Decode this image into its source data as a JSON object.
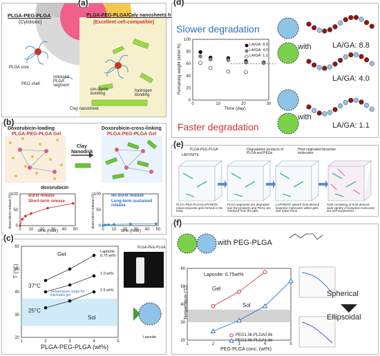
{
  "panel_a": {
    "label": "(a)",
    "left_title": "PLGA-PEG-PLGA",
    "left_sub": "(Cytotoxic)",
    "right_title": "PLGA-PEG-PLGA/Caly nanosheets hybrid",
    "right_sub": "(Excellent cell-compatible)",
    "plga_core": "PLGA core",
    "released_segment": "released PLGA segment",
    "peg_shell": "PEG shell",
    "ion_dipole": "ion-dipole bonding",
    "hydrogen": "hydrogen bonding",
    "clay": "Clay nanosheet"
  },
  "panel_b": {
    "label": "(b)",
    "left_title_1": "Doxorubicin-loading",
    "left_title_2": "PLGA-PEG-PLGA Gel",
    "right_title_1": "Doxorubicin-cross-linking",
    "right_title_2": "PLGA-PEG-PLGA Gel",
    "arrow_label_1": "Clay",
    "arrow_label_2": "Nanodisk",
    "drug": "doxorubicin",
    "left_check_1": "Burst release",
    "left_check_2": "Short-term release",
    "right_check_1": "No burst release",
    "right_check_2": "Long-term sustained release",
    "ylabel": "doxorubicin release (%)",
    "xlabel": "time (hour)",
    "ticks_y": [
      "0",
      "50",
      "100"
    ],
    "ticks_x": [
      "0",
      "10",
      "20",
      "30",
      "40",
      "50"
    ]
  },
  "panel_c": {
    "label": "(c)",
    "ylabel": "T (°C)",
    "xlabel": "PLGA-PEG-PLGA (wt%)",
    "gel": "Gel",
    "sol": "Sol",
    "t37": "37°C",
    "t25": "25°C",
    "range": "Temperature range for injectable gel",
    "ann_1": "Laponite 0.75 wt%",
    "ann_2": "1.0 wt%",
    "ann_3": "1.5 wt%",
    "inset_label": "PLGA-PEG-PLGA",
    "laponite": "Laponite",
    "x_ticks": [
      "1",
      "2",
      "3",
      "4",
      "5"
    ],
    "y_ticks": [
      "20",
      "30",
      "40",
      "50",
      "60"
    ]
  },
  "panel_d": {
    "label": "(d)",
    "slower": "Slower degradation",
    "faster": "Faster degradation",
    "with_1": "with",
    "with_2": "with",
    "la_88": "LA/GA: 8.8",
    "la_40": "LA/GA: 4.0",
    "la_11": "LA/GA: 1.1",
    "ylabel": "Remaining weight (wt/wt %)",
    "xlabel": "Time (day)",
    "legend": [
      "LA/GA: 8.8",
      "LA/GA: 4.0",
      "LA/GA: 1.1"
    ],
    "x_ticks": [
      "0",
      "10",
      "20",
      "30"
    ],
    "y_ticks": [
      "0",
      "20",
      "40",
      "60",
      "80",
      "100"
    ]
  },
  "panel_e": {
    "label": "(e)",
    "top_1": "PLGA-PEG-PLGA",
    "top_2": "LAPONITE",
    "top_3": "Degradation products of PLGA and PEGs",
    "top_4": "Host-originated bioactive molecules",
    "cap_1": "PLGA-PEG-PLGA/LAPONITE nanocomposite gels formed in the body.",
    "cap_2": "PLGA segments are degraded and the products and PEGs are released from the gels.",
    "cap_3": "LAPONITE adsorb host-derived bioactive molecules within gels and retain them.",
    "cap_4": "Gels consisting of host-derived wide variety of bioactive molecules are self-engineered."
  },
  "panel_f": {
    "label": "(f)",
    "with_text": "with PEG-PLGA",
    "laponite": "Laponite: 0.75wt%",
    "gel": "Gel",
    "sol": "Sol",
    "ylabel": "Temperature (°C)",
    "xlabel": "PEG-PLGA conc. (wt%)",
    "legend_1": "PEG1.0k-PLGA0.8k",
    "legend_2": "PEG1.0k-PLGA1.6k",
    "spherical": "Spherical",
    "ellipsoidal": "Ellipsoidal",
    "x_ticks": [
      "1",
      "2",
      "3",
      "4",
      "5"
    ],
    "y_ticks": [
      "20",
      "30",
      "40",
      "50",
      "60"
    ]
  },
  "colors": {
    "blue": "#2e6fc4",
    "red": "#d0342c",
    "bead_red": "#8b1a14",
    "bead_blue": "#8fc3e8",
    "green": "#7bd24a",
    "gel_band": "#a9d8f2"
  },
  "chart_data": [
    {
      "type": "scatter",
      "panel": "d",
      "xlabel": "Time (day)",
      "ylabel": "Remaining weight (wt/wt %)",
      "xlim": [
        0,
        30
      ],
      "ylim": [
        0,
        100
      ],
      "series": [
        {
          "name": "LA/GA: 8.8",
          "x": [
            3,
            7,
            14,
            21,
            28
          ],
          "y": [
            79,
            70,
            69,
            64,
            62
          ]
        },
        {
          "name": "LA/GA: 4.0",
          "x": [
            3,
            7,
            14,
            21,
            28
          ],
          "y": [
            72,
            67,
            66,
            62,
            61
          ]
        },
        {
          "name": "LA/GA: 1.1",
          "x": [
            3,
            7,
            14,
            21
          ],
          "y": [
            61,
            53,
            47,
            46
          ]
        }
      ]
    },
    {
      "type": "line",
      "panel": "c",
      "xlabel": "PLGA-PEG-PLGA (wt%)",
      "ylabel": "T (°C)",
      "xlim": [
        1,
        5
      ],
      "ylim": [
        20,
        60
      ],
      "series": [
        {
          "name": "Laponite 0.75 wt%",
          "x": [
            2,
            3,
            4
          ],
          "y": [
            45,
            50,
            56
          ]
        },
        {
          "name": "1.0 wt%",
          "x": [
            2,
            3,
            4
          ],
          "y": [
            40,
            43,
            47
          ]
        },
        {
          "name": "1.5 wt%",
          "x": [
            2,
            3,
            4
          ],
          "y": [
            33,
            36,
            40
          ]
        }
      ]
    },
    {
      "type": "line",
      "panel": "f",
      "xlabel": "PEG-PLGA conc. (wt%)",
      "ylabel": "Temperature (°C)",
      "xlim": [
        1,
        5
      ],
      "ylim": [
        20,
        60
      ],
      "series": [
        {
          "name": "PEG1.0k-PLGA0.8k",
          "x": [
            2,
            3,
            4
          ],
          "y": [
            39,
            47,
            58
          ]
        },
        {
          "name": "PEG1.0k-PLGA1.6k",
          "x": [
            2,
            3,
            4,
            5
          ],
          "y": [
            25,
            31,
            39,
            53
          ]
        }
      ]
    },
    {
      "type": "line",
      "panel": "b-left",
      "xlabel": "time (hour)",
      "ylabel": "doxorubicin release (%)",
      "xlim": [
        0,
        50
      ],
      "ylim": [
        0,
        100
      ],
      "series": [
        {
          "name": "PLGA-PEG-PLGA gel",
          "x": [
            0,
            2,
            5,
            10,
            25,
            48
          ],
          "y": [
            0,
            20,
            30,
            38,
            55,
            70
          ]
        }
      ]
    },
    {
      "type": "line",
      "panel": "b-right",
      "xlabel": "time (hour)",
      "ylabel": "doxorubicin release (%)",
      "xlim": [
        0,
        50
      ],
      "ylim": [
        0,
        100
      ],
      "series": [
        {
          "name": "Doxorubicin-cross-linking gel",
          "x": [
            0,
            2,
            5,
            10,
            25,
            48
          ],
          "y": [
            0,
            2,
            3,
            4,
            5,
            6
          ]
        }
      ]
    }
  ]
}
